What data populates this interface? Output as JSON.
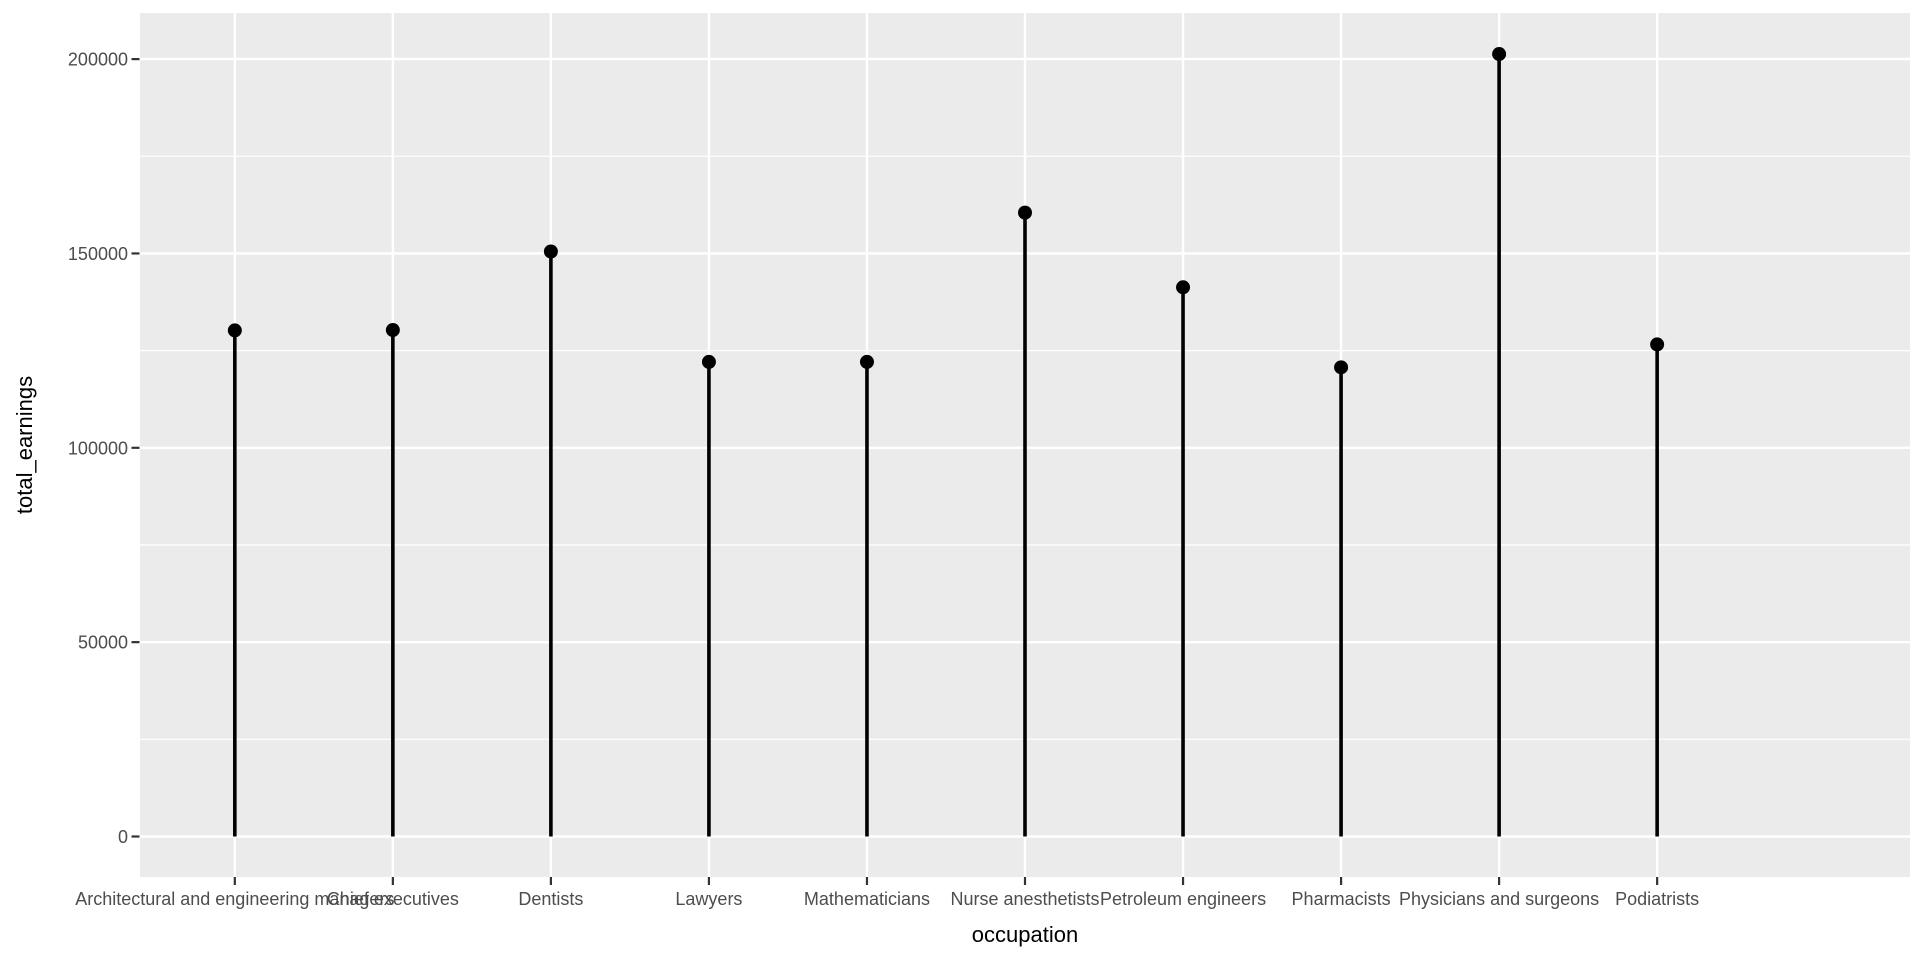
{
  "chart_data": {
    "type": "scatter",
    "style": "lollipop-stem-plot-ggplot2",
    "title": "",
    "xlabel": "occupation",
    "ylabel": "total_earnings",
    "categories": [
      "Architectural and engineering managers",
      "Chief executives",
      "Dentists",
      "Lawyers",
      "Mathematicians",
      "Nurse anesthetists",
      "Petroleum engineers",
      "Pharmacists",
      "Physicians and surgeons",
      "Podiatrists"
    ],
    "values": [
      130200,
      130300,
      150500,
      122100,
      122100,
      160500,
      141300,
      120700,
      201300,
      126600
    ],
    "stem_base": 0,
    "yticks": [
      0,
      50000,
      100000,
      150000,
      200000
    ],
    "ytick_labels": [
      "0",
      "50000",
      "100000",
      "150000",
      "200000"
    ],
    "yminor": [
      25000,
      75000,
      125000,
      175000
    ],
    "ylim": [
      -10400,
      211800
    ],
    "grid": "horizontal major+minor white lines; vertical white major line at each category",
    "legend": "none",
    "colors": {
      "panel_bg": "#EBEBEB",
      "grid": "#FFFFFF",
      "stem": "#000000",
      "point": "#000000",
      "axis_text": "#4D4D4D",
      "axis_title": "#000000",
      "tick_mark": "#333333",
      "outer_bg": "#FFFFFF"
    }
  }
}
